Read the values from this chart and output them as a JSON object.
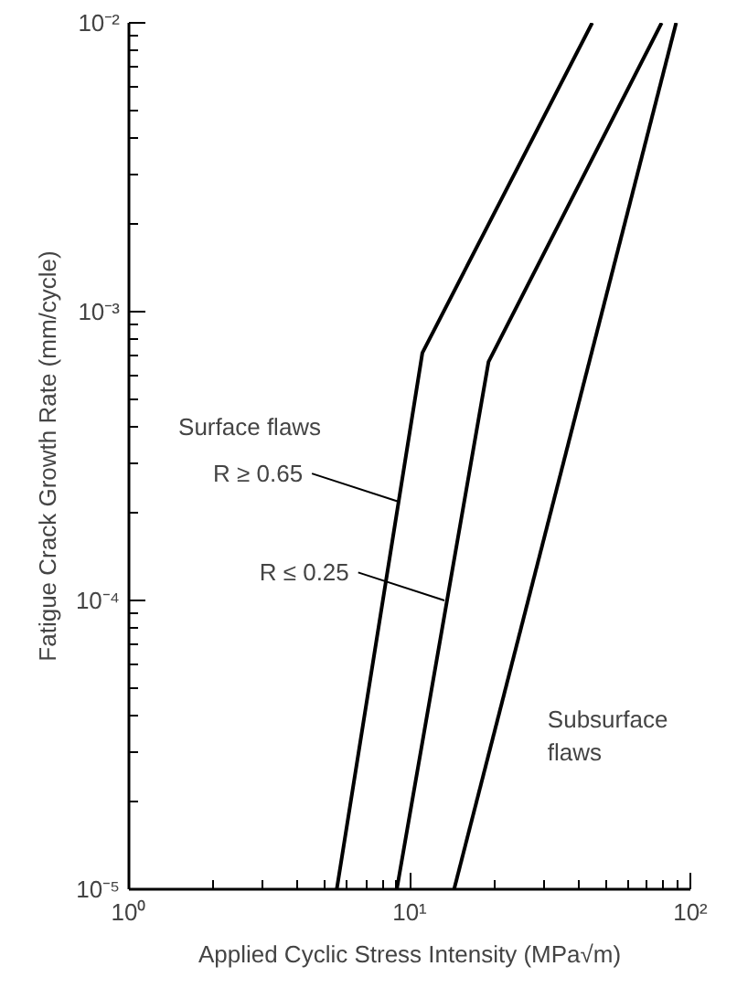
{
  "chart_data": {
    "type": "line",
    "xlabel": "Applied Cyclic Stress Intensity (MPa√m)",
    "ylabel": "Fatigue Crack Growth Rate (mm/cycle)",
    "log": "xy",
    "grid": false,
    "marker": "none",
    "line_style": "solid",
    "xlim": [
      1,
      100
    ],
    "ylim": [
      1e-05,
      0.01
    ],
    "xticks": [
      {
        "value": 1,
        "label": "10⁰"
      },
      {
        "value": 10,
        "label": "10¹"
      },
      {
        "value": 100,
        "label": "10²"
      }
    ],
    "yticks": [
      {
        "value": 1e-05,
        "label": "10⁻⁵"
      },
      {
        "value": 0.0001,
        "label": "10⁻⁴"
      },
      {
        "value": 0.001,
        "label": "10⁻³"
      },
      {
        "value": 0.01,
        "label": "10⁻²"
      }
    ],
    "series": [
      {
        "color": "#000000",
        "x": [
          5.5,
          11.1,
          44.7
        ],
        "values": [
          1e-05,
          0.00072,
          0.01
        ]
      },
      {
        "color": "#000000",
        "x": [
          9.0,
          19.1,
          79
        ],
        "values": [
          1e-05,
          0.00067,
          0.01
        ]
      },
      {
        "color": "#000000",
        "x": [
          14.4,
          89
        ],
        "values": [
          1e-05,
          0.01
        ]
      }
    ],
    "annotations": [
      "Surface flaws",
      {
        "text": "R ≥ 0.65",
        "x": 9.1,
        "y": 0.00022
      },
      {
        "text": "R ≤ 0.25",
        "x": 13.3,
        "y": 0.0001
      },
      "Subsurface flaws"
    ]
  }
}
